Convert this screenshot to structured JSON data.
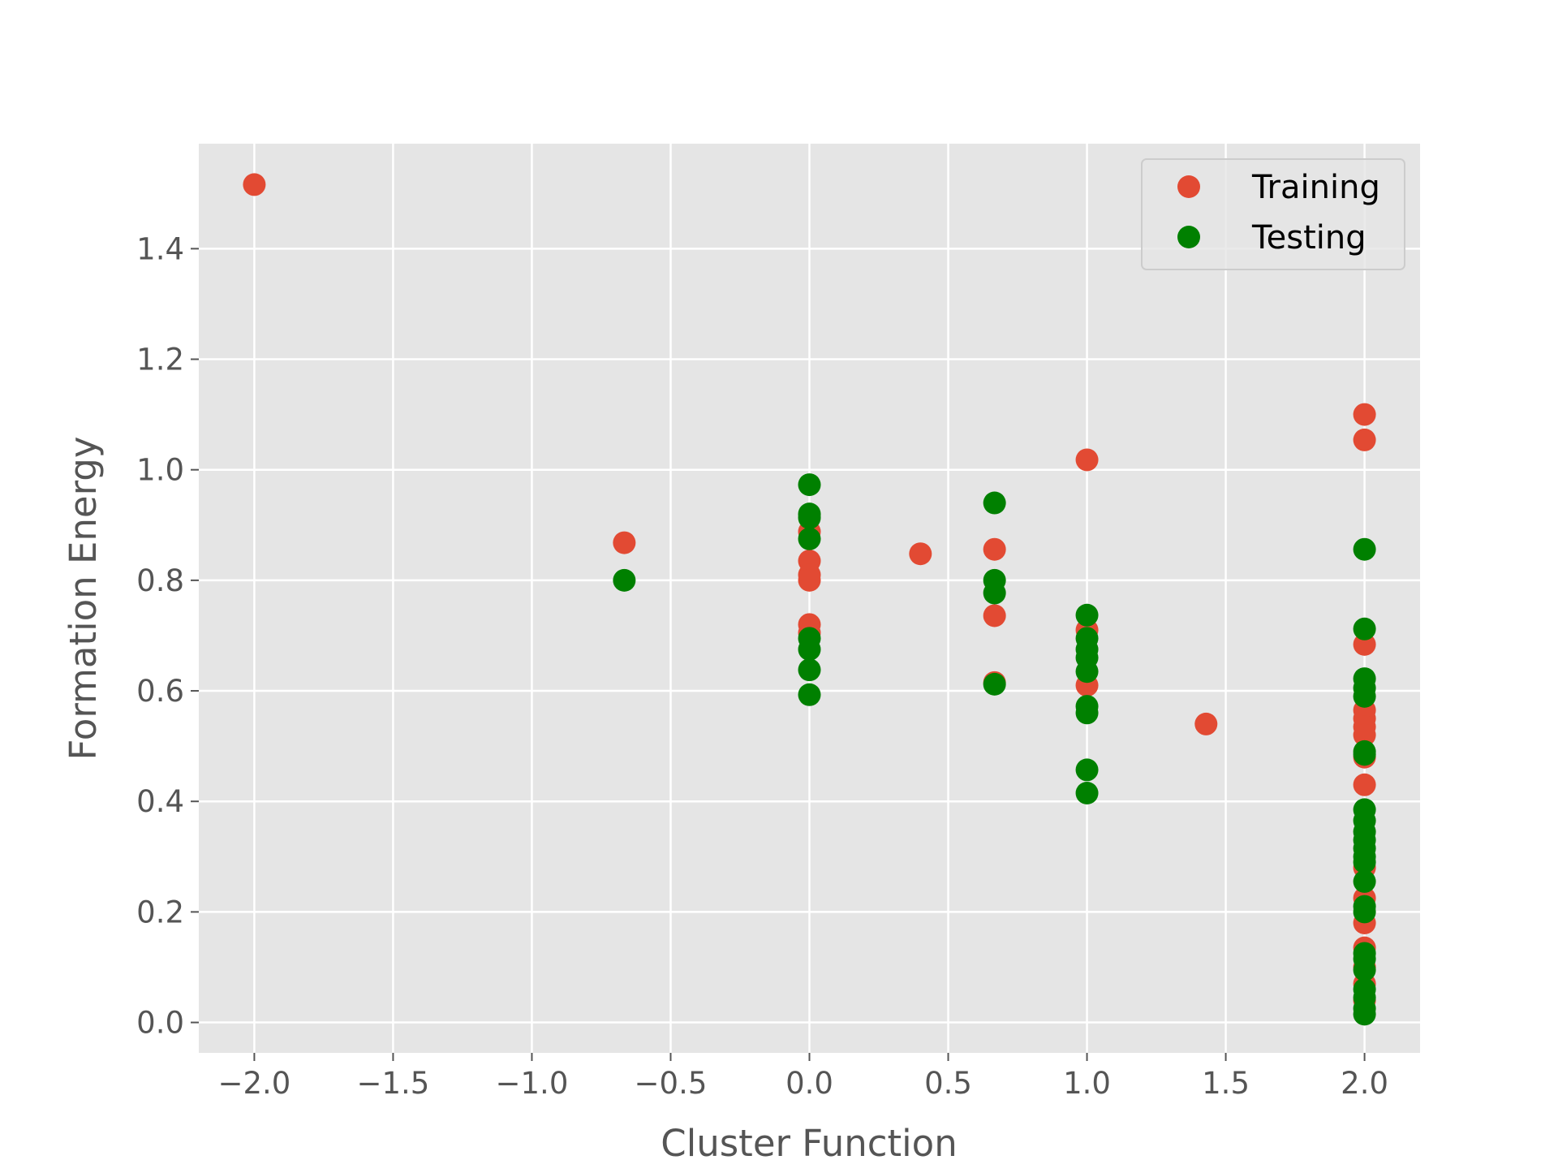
{
  "chart_data": {
    "type": "scatter",
    "title": "",
    "xlabel": "Cluster Function",
    "ylabel": "Formation Energy",
    "xlim": [
      -2.2,
      2.2
    ],
    "ylim": [
      -0.055,
      1.59
    ],
    "x_ticks": [
      -2.0,
      -1.5,
      -1.0,
      -0.5,
      0.0,
      0.5,
      1.0,
      1.5,
      2.0
    ],
    "x_tick_labels": [
      "−2.0",
      "−1.5",
      "−1.0",
      "−0.5",
      "0.0",
      "0.5",
      "1.0",
      "1.5",
      "2.0"
    ],
    "y_ticks": [
      0.0,
      0.2,
      0.4,
      0.6,
      0.8,
      1.0,
      1.2,
      1.4
    ],
    "y_tick_labels": [
      "0.0",
      "0.2",
      "0.4",
      "0.6",
      "0.8",
      "1.0",
      "1.2",
      "1.4"
    ],
    "grid": true,
    "style": "ggplot",
    "legend_position": "top-right",
    "series": [
      {
        "name": "Training",
        "color": "#e24a33",
        "points": [
          [
            -2.0,
            1.516
          ],
          [
            -0.667,
            0.868
          ],
          [
            0.0,
            0.888
          ],
          [
            0.0,
            0.835
          ],
          [
            0.0,
            0.81
          ],
          [
            0.0,
            0.8
          ],
          [
            0.0,
            0.72
          ],
          [
            0.0,
            0.705
          ],
          [
            0.4,
            0.848
          ],
          [
            0.667,
            0.856
          ],
          [
            0.667,
            0.736
          ],
          [
            0.667,
            0.615
          ],
          [
            1.0,
            1.018
          ],
          [
            1.0,
            0.71
          ],
          [
            1.0,
            0.61
          ],
          [
            1.429,
            0.54
          ],
          [
            2.0,
            1.1
          ],
          [
            2.0,
            1.054
          ],
          [
            2.0,
            0.684
          ],
          [
            2.0,
            0.565
          ],
          [
            2.0,
            0.55
          ],
          [
            2.0,
            0.535
          ],
          [
            2.0,
            0.52
          ],
          [
            2.0,
            0.48
          ],
          [
            2.0,
            0.43
          ],
          [
            2.0,
            0.28
          ],
          [
            2.0,
            0.225
          ],
          [
            2.0,
            0.18
          ],
          [
            2.0,
            0.135
          ],
          [
            2.0,
            0.1
          ],
          [
            2.0,
            0.07
          ],
          [
            2.0,
            0.04
          ]
        ]
      },
      {
        "name": "Testing",
        "color": "#008000",
        "points": [
          [
            -0.667,
            0.8
          ],
          [
            0.0,
            0.973
          ],
          [
            0.0,
            0.92
          ],
          [
            0.0,
            0.913
          ],
          [
            0.0,
            0.875
          ],
          [
            0.0,
            0.695
          ],
          [
            0.0,
            0.675
          ],
          [
            0.0,
            0.638
          ],
          [
            0.0,
            0.593
          ],
          [
            0.667,
            0.94
          ],
          [
            0.667,
            0.8
          ],
          [
            0.667,
            0.777
          ],
          [
            0.667,
            0.612
          ],
          [
            1.0,
            0.737
          ],
          [
            1.0,
            0.695
          ],
          [
            1.0,
            0.675
          ],
          [
            1.0,
            0.66
          ],
          [
            1.0,
            0.635
          ],
          [
            1.0,
            0.572
          ],
          [
            1.0,
            0.56
          ],
          [
            1.0,
            0.457
          ],
          [
            1.0,
            0.415
          ],
          [
            2.0,
            0.856
          ],
          [
            2.0,
            0.712
          ],
          [
            2.0,
            0.622
          ],
          [
            2.0,
            0.605
          ],
          [
            2.0,
            0.59
          ],
          [
            2.0,
            0.49
          ],
          [
            2.0,
            0.485
          ],
          [
            2.0,
            0.385
          ],
          [
            2.0,
            0.365
          ],
          [
            2.0,
            0.345
          ],
          [
            2.0,
            0.33
          ],
          [
            2.0,
            0.315
          ],
          [
            2.0,
            0.3
          ],
          [
            2.0,
            0.29
          ],
          [
            2.0,
            0.255
          ],
          [
            2.0,
            0.21
          ],
          [
            2.0,
            0.2
          ],
          [
            2.0,
            0.125
          ],
          [
            2.0,
            0.115
          ],
          [
            2.0,
            0.095
          ],
          [
            2.0,
            0.06
          ],
          [
            2.0,
            0.045
          ],
          [
            2.0,
            0.025
          ],
          [
            2.0,
            0.015
          ]
        ]
      }
    ]
  }
}
